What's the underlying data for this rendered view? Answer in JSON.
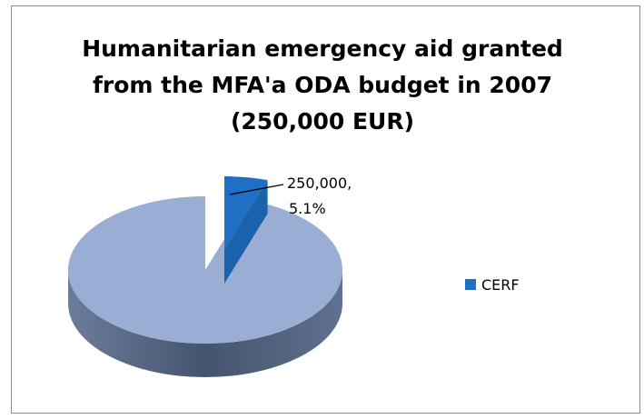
{
  "chart_data": {
    "type": "pie",
    "title_lines": [
      "Humanitarian emergency aid granted",
      "from the MFA'a ODA budget in 2007",
      "(250,000 EUR)"
    ],
    "slices": [
      {
        "name": "CERF",
        "value": 250000,
        "percent": 5.1,
        "label_value": "250,000,",
        "label_percent": "5.1%",
        "color": "#1f6fc5",
        "exploded": true
      },
      {
        "name": "",
        "value_share_percent": 94.9,
        "color": "#9aaed4",
        "exploded": false
      }
    ],
    "legend": {
      "placement": "right",
      "entries": [
        "CERF"
      ]
    },
    "style": "3d-pie"
  }
}
